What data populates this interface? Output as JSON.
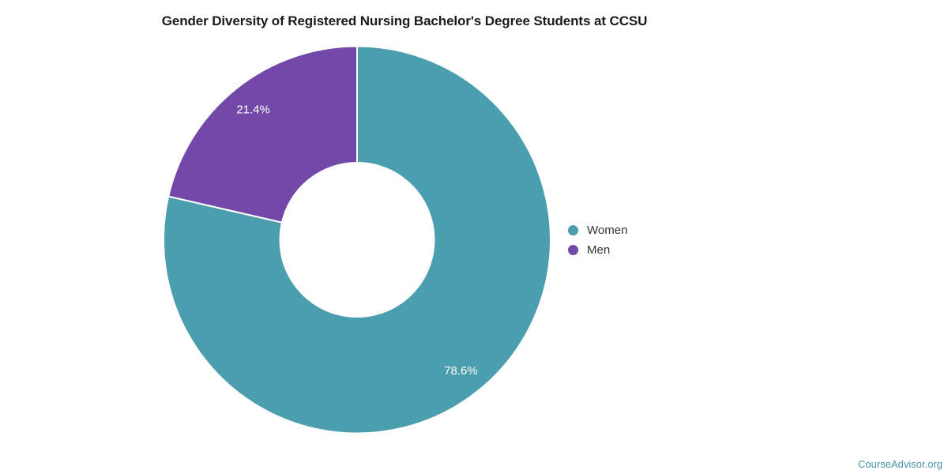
{
  "chart_data": {
    "type": "pie",
    "subtype": "donut",
    "title": "Gender Diversity of Registered Nursing Bachelor's Degree Students at CCSU",
    "categories": [
      "Women",
      "Men"
    ],
    "values": [
      78.6,
      21.4
    ],
    "data_labels": [
      "78.6%",
      "21.4%"
    ],
    "colors": [
      "#4A9EAD",
      "#7249A8"
    ],
    "legend_position": "right",
    "start_angle_deg": 0,
    "direction": "clockwise",
    "grid": false
  },
  "legend": {
    "items": [
      {
        "label": "Women",
        "color": "#4A9EAD"
      },
      {
        "label": "Men",
        "color": "#7249A8"
      }
    ]
  },
  "watermark": {
    "label": "CourseAdvisor.org",
    "color": "#4A93A8"
  },
  "colors": {
    "background": "#ffffff",
    "title_text": "#1a1a1a",
    "legend_text": "#333333",
    "slice_label_text": "#ffffff",
    "slice_border": "#ffffff"
  }
}
